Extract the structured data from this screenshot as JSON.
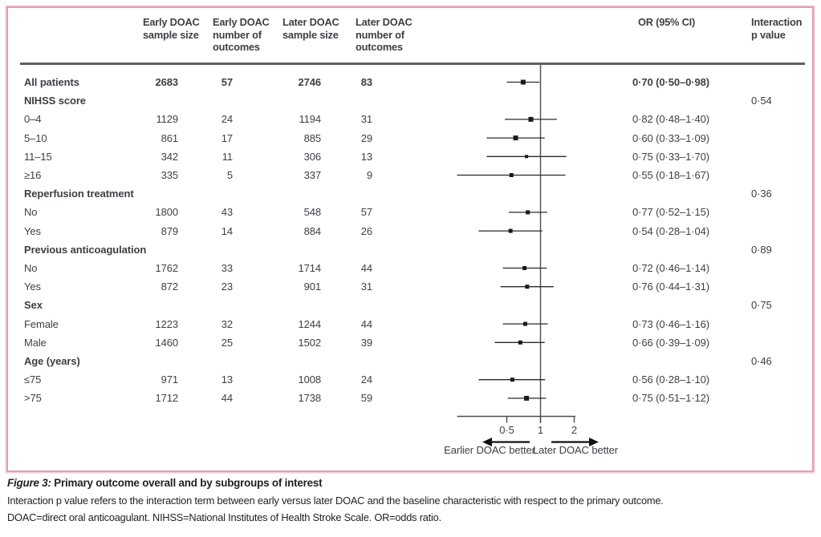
{
  "table": {
    "headers": {
      "col_early_n": "Early DOAC sample size",
      "col_early_outcomes": "Early DOAC number of outcomes",
      "col_later_n": "Later DOAC sample size",
      "col_later_outcomes": "Later DOAC number of outcomes",
      "col_or": "OR (95% CI)",
      "col_p": "Interaction p value"
    }
  },
  "chart_data": {
    "type": "forest",
    "x_scale": "log2",
    "ref_value": 1,
    "axis_min": 0.18,
    "axis_max": 2.05,
    "axis_ticks": [
      {
        "label": "0·5",
        "value": 0.5
      },
      {
        "label": "1",
        "value": 1
      },
      {
        "label": "2",
        "value": 2
      }
    ],
    "left_arrow_label": "Earlier DOAC better",
    "right_arrow_label": "Later DOAC better",
    "rows": [
      {
        "label": "All patients",
        "type": "data",
        "bold": true,
        "early_n": "2683",
        "early_outcomes": "57",
        "later_n": "2746",
        "later_outcomes": "83",
        "or": 0.7,
        "lo": 0.5,
        "hi": 0.98,
        "or_text": "0·70 (0·50–0·98)",
        "marker": 6
      },
      {
        "label": "NIHSS score",
        "type": "group",
        "p": "0·54"
      },
      {
        "label": "0–4",
        "type": "data",
        "early_n": "1129",
        "early_outcomes": "24",
        "later_n": "1194",
        "later_outcomes": "31",
        "or": 0.82,
        "lo": 0.48,
        "hi": 1.4,
        "or_text": "0·82 (0·48–1·40)",
        "marker": 6
      },
      {
        "label": "5–10",
        "type": "data",
        "early_n": "861",
        "early_outcomes": "17",
        "later_n": "885",
        "later_outcomes": "29",
        "or": 0.6,
        "lo": 0.33,
        "hi": 1.09,
        "or_text": "0·60 (0·33–1·09)",
        "marker": 6
      },
      {
        "label": "11–15",
        "type": "data",
        "early_n": "342",
        "early_outcomes": "11",
        "later_n": "306",
        "later_outcomes": "13",
        "or": 0.75,
        "lo": 0.33,
        "hi": 1.7,
        "or_text": "0·75 (0·33–1·70)",
        "marker": 4
      },
      {
        "label": "≥16",
        "type": "data",
        "early_n": "335",
        "early_outcomes": "5",
        "later_n": "337",
        "later_outcomes": "9",
        "or": 0.55,
        "lo": 0.18,
        "hi": 1.67,
        "or_text": "0·55 (0·18–1·67)",
        "marker": 5
      },
      {
        "label": "Reperfusion treatment",
        "type": "group",
        "p": "0·36"
      },
      {
        "label": "No",
        "type": "data",
        "early_n": "1800",
        "early_outcomes": "43",
        "later_n": "548",
        "later_outcomes": "57",
        "or": 0.77,
        "lo": 0.52,
        "hi": 1.15,
        "or_text": "0·77 (0·52–1·15)",
        "marker": 5
      },
      {
        "label": "Yes",
        "type": "data",
        "early_n": "879",
        "early_outcomes": "14",
        "later_n": "884",
        "later_outcomes": "26",
        "or": 0.54,
        "lo": 0.28,
        "hi": 1.04,
        "or_text": "0·54 (0·28–1·04)",
        "marker": 5
      },
      {
        "label": "Previous anticoagulation",
        "type": "group",
        "p": "0·89"
      },
      {
        "label": "No",
        "type": "data",
        "early_n": "1762",
        "early_outcomes": "33",
        "later_n": "1714",
        "later_outcomes": "44",
        "or": 0.72,
        "lo": 0.46,
        "hi": 1.14,
        "or_text": "0·72 (0·46–1·14)",
        "marker": 5
      },
      {
        "label": "Yes",
        "type": "data",
        "early_n": "872",
        "early_outcomes": "23",
        "later_n": "901",
        "later_outcomes": "31",
        "or": 0.76,
        "lo": 0.44,
        "hi": 1.31,
        "or_text": "0·76 (0·44–1·31)",
        "marker": 5
      },
      {
        "label": "Sex",
        "type": "group",
        "p": "0·75"
      },
      {
        "label": "Female",
        "type": "data",
        "early_n": "1223",
        "early_outcomes": "32",
        "later_n": "1244",
        "later_outcomes": "44",
        "or": 0.73,
        "lo": 0.46,
        "hi": 1.16,
        "or_text": "0·73 (0·46–1·16)",
        "marker": 5
      },
      {
        "label": "Male",
        "type": "data",
        "early_n": "1460",
        "early_outcomes": "25",
        "later_n": "1502",
        "later_outcomes": "39",
        "or": 0.66,
        "lo": 0.39,
        "hi": 1.09,
        "or_text": "0·66 (0·39–1·09)",
        "marker": 5
      },
      {
        "label": "Age (years)",
        "type": "group",
        "p": "0·46"
      },
      {
        "label": "≤75",
        "type": "data",
        "early_n": "971",
        "early_outcomes": "13",
        "later_n": "1008",
        "later_outcomes": "24",
        "or": 0.56,
        "lo": 0.28,
        "hi": 1.1,
        "or_text": "0·56 (0·28–1·10)",
        "marker": 5
      },
      {
        "label": ">75",
        "type": "data",
        "early_n": "1712",
        "early_outcomes": "44",
        "later_n": "1738",
        "later_outcomes": "59",
        "or": 0.75,
        "lo": 0.51,
        "hi": 1.12,
        "or_text": "0·75 (0·51–1·12)",
        "marker": 6
      }
    ]
  },
  "caption": {
    "label": "Figure 3:",
    "title": "Primary outcome overall and by subgroups of interest",
    "note_line1": "Interaction p value refers to the interaction term between early versus later DOAC and the baseline characteristic with respect to the primary outcome.",
    "note_line2": "DOAC=direct oral anticoagulant. NIHSS=National Institutes of Health Stroke Scale. OR=odds ratio."
  },
  "colors": {
    "border_pink": "#e49cb4",
    "border_pink_light": "#f4ccd9",
    "header_rule": "#5f5f5f",
    "text": "#3d3f44",
    "plot_line": "#4d4d4d",
    "whisker": "#2a2a2a",
    "marker_fill": "#1a1a1a"
  }
}
